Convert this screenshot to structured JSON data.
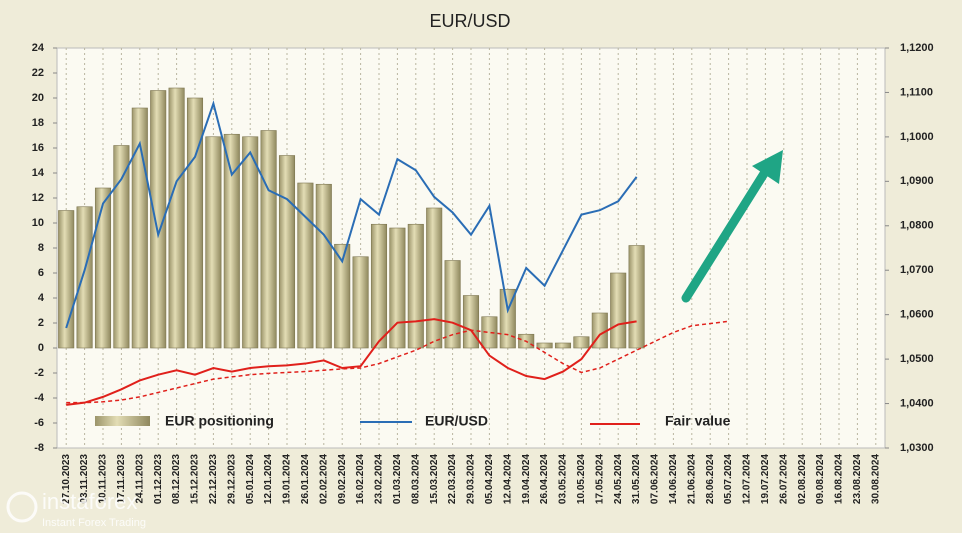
{
  "chart_data": {
    "type": "bar",
    "title": "EUR/USD",
    "categories": [
      "27.10.2023",
      "03.11.2023",
      "10.11.2023",
      "17.11.2023",
      "24.11.2023",
      "01.12.2023",
      "08.12.2023",
      "15.12.2023",
      "22.12.2023",
      "29.12.2023",
      "05.01.2024",
      "12.01.2024",
      "19.01.2024",
      "26.01.2024",
      "02.02.2024",
      "09.02.2024",
      "16.02.2024",
      "23.02.2024",
      "01.03.2024",
      "08.03.2024",
      "15.03.2024",
      "22.03.2024",
      "29.03.2024",
      "05.04.2024",
      "12.04.2024",
      "19.04.2024",
      "26.04.2024",
      "03.05.2024",
      "10.05.2024",
      "17.05.2024",
      "24.05.2024",
      "31.05.2024",
      "07.06.2024",
      "14.06.2024",
      "21.06.2024",
      "28.06.2024",
      "05.07.2024",
      "12.07.2024",
      "19.07.2024",
      "26.07.2024",
      "02.08.2024",
      "09.08.2024",
      "16.08.2024",
      "23.08.2024",
      "30.08.2024"
    ],
    "series": [
      {
        "name": "EUR positioning",
        "type": "bar",
        "color": "#c9c193",
        "values": [
          11,
          11.3,
          12.8,
          16.2,
          19.2,
          20.6,
          20.8,
          20,
          16.9,
          17.1,
          16.9,
          17.4,
          15.4,
          13.2,
          13.1,
          8.3,
          7.3,
          9.9,
          9.6,
          9.9,
          11.2,
          7,
          4.2,
          2.5,
          4.7,
          1.1,
          0.4,
          0.4,
          0.9,
          2.8,
          6,
          8.2,
          null,
          null,
          null,
          null,
          null,
          null,
          null,
          null,
          null,
          null,
          null,
          null,
          null
        ]
      },
      {
        "name": "EUR/USD",
        "type": "line",
        "axis": "y2",
        "color": "#2a6db5",
        "values": [
          1.057,
          1.07,
          1.085,
          1.0905,
          1.0985,
          1.078,
          1.09,
          1.0955,
          1.1075,
          1.0915,
          1.0965,
          1.088,
          1.086,
          1.082,
          1.078,
          1.072,
          1.086,
          1.0825,
          1.095,
          1.0925,
          1.0865,
          1.083,
          1.078,
          1.0845,
          1.061,
          1.0705,
          1.0665,
          1.0745,
          1.0825,
          1.0835,
          1.0855,
          1.091,
          null,
          null,
          null,
          null,
          null,
          null,
          null,
          null,
          null,
          null,
          null,
          null,
          null
        ]
      },
      {
        "name": "Fair value",
        "type": "line",
        "axis": "y2",
        "color": "#e0201b",
        "values": [
          1.0397,
          1.0402,
          1.0415,
          1.0432,
          1.0452,
          1.0465,
          1.0475,
          1.0465,
          1.048,
          1.0472,
          1.048,
          1.0484,
          1.0486,
          1.049,
          1.0497,
          1.048,
          1.0484,
          1.054,
          1.0582,
          1.0585,
          1.059,
          1.0582,
          1.0565,
          1.0508,
          1.048,
          1.0462,
          1.0455,
          1.0472,
          1.05,
          1.0555,
          1.0578,
          1.0585,
          null,
          null,
          null,
          null,
          null,
          null,
          null,
          null,
          null,
          null,
          null,
          null,
          null
        ]
      },
      {
        "type": "line",
        "axis": "y2",
        "color": "#e0201b",
        "dashed": true,
        "values": [
          1.0402,
          1.0402,
          1.0404,
          1.0408,
          1.0415,
          1.0425,
          1.0435,
          1.0445,
          1.0455,
          1.046,
          1.0465,
          1.0468,
          1.047,
          1.0472,
          1.0475,
          1.0478,
          1.048,
          1.049,
          1.0505,
          1.052,
          1.054,
          1.0555,
          1.0565,
          1.056,
          1.0555,
          1.054,
          1.0515,
          1.049,
          1.047,
          1.048,
          1.05,
          1.052,
          1.054,
          1.056,
          1.0575,
          1.058,
          1.0585,
          null,
          null,
          null,
          null,
          null,
          null,
          null,
          null
        ]
      }
    ],
    "ylim": [
      -8,
      24
    ],
    "yticks": [
      -8,
      -6,
      -4,
      -2,
      0,
      2,
      4,
      6,
      8,
      10,
      12,
      14,
      16,
      18,
      20,
      22,
      24
    ],
    "y2lim": [
      1.03,
      1.12
    ],
    "y2ticks": [
      {
        "value": 1.03,
        "label": "1,0300"
      },
      {
        "value": 1.04,
        "label": "1,0400"
      },
      {
        "value": 1.05,
        "label": "1,0500"
      },
      {
        "value": 1.06,
        "label": "1,0600"
      },
      {
        "value": 1.07,
        "label": "1,0700"
      },
      {
        "value": 1.08,
        "label": "1,0800"
      },
      {
        "value": 1.09,
        "label": "1,0900"
      },
      {
        "value": 1.1,
        "label": "1,1000"
      },
      {
        "value": 1.11,
        "label": "1,1100"
      },
      {
        "value": 1.12,
        "label": "1,1200"
      }
    ],
    "grid": true,
    "legend": "bottom"
  },
  "watermark": {
    "brand": "instaforex",
    "tagline": "Instant Forex Trading"
  }
}
